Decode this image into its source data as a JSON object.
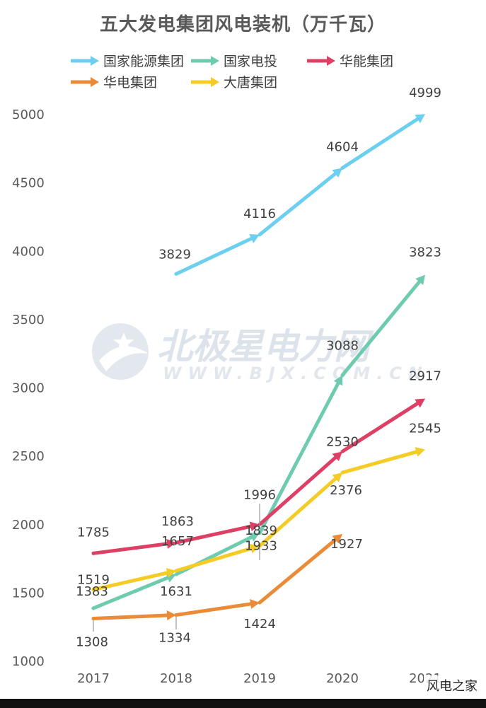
{
  "chart_data": {
    "type": "line",
    "title": "五大发电集团风电装机（万千瓦）",
    "x": [
      2017,
      2018,
      2019,
      2020,
      2021
    ],
    "ylim": [
      1000,
      5000
    ],
    "yticks": [
      1000,
      1500,
      2000,
      2500,
      3000,
      3500,
      4000,
      4500,
      5000
    ],
    "legend_position": "top",
    "grid": false,
    "series": [
      {
        "name": "国家能源集团",
        "color": "#6dcff0",
        "values": [
          null,
          3829,
          4116,
          4604,
          4999
        ]
      },
      {
        "name": "国家电投",
        "color": "#6ecbb0",
        "values": [
          1383,
          1631,
          1933,
          3088,
          3823
        ]
      },
      {
        "name": "华能集团",
        "color": "#de3f64",
        "values": [
          1785,
          1863,
          1996,
          2530,
          2917
        ]
      },
      {
        "name": "华电集团",
        "color": "#e98b37",
        "values": [
          1308,
          1334,
          1424,
          1927,
          null
        ]
      },
      {
        "name": "大唐集团",
        "color": "#f5cc25",
        "values": [
          1519,
          1657,
          1839,
          2376,
          2545
        ]
      }
    ]
  },
  "watermark": {
    "main": "北极星电力网",
    "sub": "WWW.BJX.COM.CN"
  },
  "corner_label": "风电之家"
}
